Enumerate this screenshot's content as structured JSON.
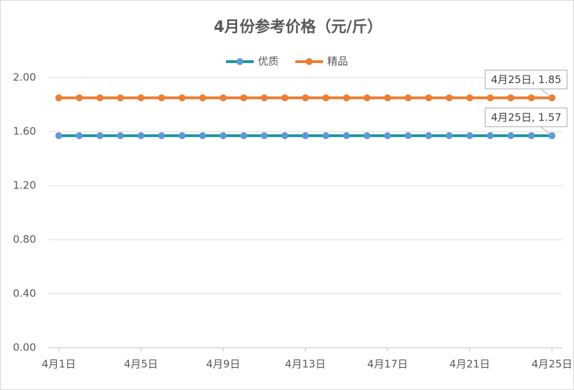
{
  "chart_data": {
    "type": "line",
    "title": "4月份参考价格（元/斤）",
    "categories": [
      "4月1日",
      null,
      null,
      null,
      "4月5日",
      null,
      null,
      null,
      "4月9日",
      null,
      null,
      null,
      "4月13日",
      null,
      null,
      null,
      "4月17日",
      null,
      null,
      null,
      "4月21日",
      null,
      null,
      null,
      "4月25日"
    ],
    "series": [
      {
        "name": "优质",
        "color": "#1f93a8",
        "marker_color": "#5b9bd5",
        "values": [
          1.57,
          1.57,
          1.57,
          1.57,
          1.57,
          1.57,
          1.57,
          1.57,
          1.57,
          1.57,
          1.57,
          1.57,
          1.57,
          1.57,
          1.57,
          1.57,
          1.57,
          1.57,
          1.57,
          1.57,
          1.57,
          1.57,
          1.57,
          1.57,
          1.57
        ],
        "value_labels": [
          null,
          null,
          null,
          null,
          null,
          null,
          null,
          null,
          null,
          null,
          null,
          null,
          null,
          null,
          null,
          null,
          null,
          null,
          null,
          null,
          null,
          null,
          null,
          null,
          "4月25日, 1.57"
        ]
      },
      {
        "name": "精品",
        "color": "#ed7d31",
        "marker_color": "#ed7d31",
        "values": [
          1.85,
          1.85,
          1.85,
          1.85,
          1.85,
          1.85,
          1.85,
          1.85,
          1.85,
          1.85,
          1.85,
          1.85,
          1.85,
          1.85,
          1.85,
          1.85,
          1.85,
          1.85,
          1.85,
          1.85,
          1.85,
          1.85,
          1.85,
          1.85,
          1.85
        ],
        "value_labels": [
          null,
          null,
          null,
          null,
          null,
          null,
          null,
          null,
          null,
          null,
          null,
          null,
          null,
          null,
          null,
          null,
          null,
          null,
          null,
          null,
          null,
          null,
          null,
          null,
          "4月25日, 1.85"
        ]
      }
    ],
    "ylim": [
      0,
      2
    ],
    "yticks": [
      {
        "value": 0,
        "label": "0.00"
      },
      {
        "value": 0.4,
        "label": "0.40"
      },
      {
        "value": 0.8,
        "label": "0.80"
      },
      {
        "value": 1.2,
        "label": "1.20"
      },
      {
        "value": 1.6,
        "label": "1.60"
      },
      {
        "value": 2,
        "label": "2.00"
      }
    ],
    "grid": true,
    "legend": "top"
  }
}
